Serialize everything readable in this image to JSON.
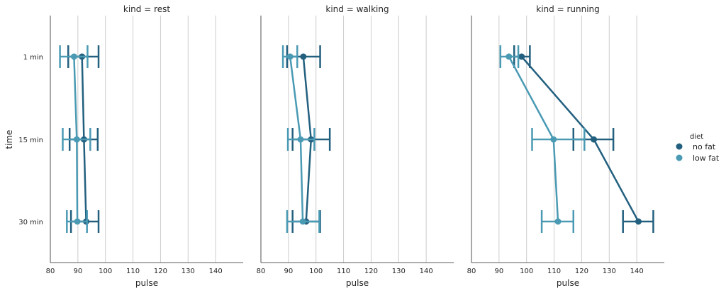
{
  "chart_data": {
    "type": "point",
    "ylabel": "time",
    "xlabel": "pulse",
    "categories": [
      "1 min",
      "15 min",
      "30 min"
    ],
    "xlim": [
      80,
      150
    ],
    "xticks": [
      80,
      90,
      100,
      110,
      120,
      130,
      140
    ],
    "grid": "vertical",
    "legend": {
      "title": "diet",
      "placement": "right",
      "entries": [
        "no fat",
        "low fat"
      ]
    },
    "colors": {
      "no fat": "#23607f",
      "low fat": "#4a9ab4"
    },
    "panels": [
      {
        "title": "kind = rest",
        "series": [
          {
            "name": "no fat",
            "values": [
              91.5,
              92.2,
              93.0
            ],
            "ci": [
              [
                86.5,
                97.5
              ],
              [
                87.0,
                97.2
              ],
              [
                87.5,
                97.5
              ]
            ]
          },
          {
            "name": "low fat",
            "values": [
              88.6,
              89.6,
              89.8
            ],
            "ci": [
              [
                83.5,
                93.5
              ],
              [
                84.5,
                94.5
              ],
              [
                86.0,
                93.3
              ]
            ]
          }
        ]
      },
      {
        "title": "kind = walking",
        "series": [
          {
            "name": "no fat",
            "values": [
              95.4,
              98.2,
              96.4
            ],
            "ci": [
              [
                89.5,
                101.5
              ],
              [
                91.5,
                105.0
              ],
              [
                91.5,
                101.5
              ]
            ]
          },
          {
            "name": "low fat",
            "values": [
              90.6,
              94.4,
              95.2
            ],
            "ci": [
              [
                88.0,
                93.2
              ],
              [
                89.8,
                99.4
              ],
              [
                89.5,
                101.2
              ]
            ]
          }
        ]
      },
      {
        "title": "kind = running",
        "series": [
          {
            "name": "no fat",
            "values": [
              98.2,
              124.4,
              140.6
            ],
            "ci": [
              [
                95.5,
                101.2
              ],
              [
                117.0,
                131.5
              ],
              [
                135.0,
                146.0
              ]
            ]
          },
          {
            "name": "low fat",
            "values": [
              93.6,
              109.8,
              111.4
            ],
            "ci": [
              [
                90.5,
                97.0
              ],
              [
                102.0,
                121.0
              ],
              [
                105.5,
                117.0
              ]
            ]
          }
        ]
      }
    ]
  }
}
